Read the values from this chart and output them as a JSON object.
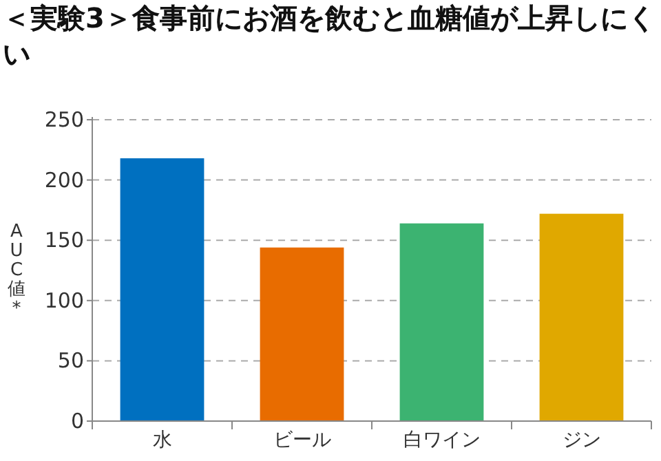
{
  "chart_data": {
    "type": "bar",
    "title": "＜実験3＞食事前にお酒を飲むと血糖値が上昇しにくい",
    "ylabel": "AUC値*",
    "categories": [
      "水",
      "ビール",
      "白ワイン",
      "ジン"
    ],
    "values": [
      218,
      144,
      164,
      172
    ],
    "colors": [
      "#0070c0",
      "#e86c00",
      "#3cb371",
      "#e0a800"
    ],
    "ylim": [
      0,
      250
    ],
    "yticks": [
      0,
      50,
      100,
      150,
      200,
      250
    ],
    "grid": "y"
  }
}
